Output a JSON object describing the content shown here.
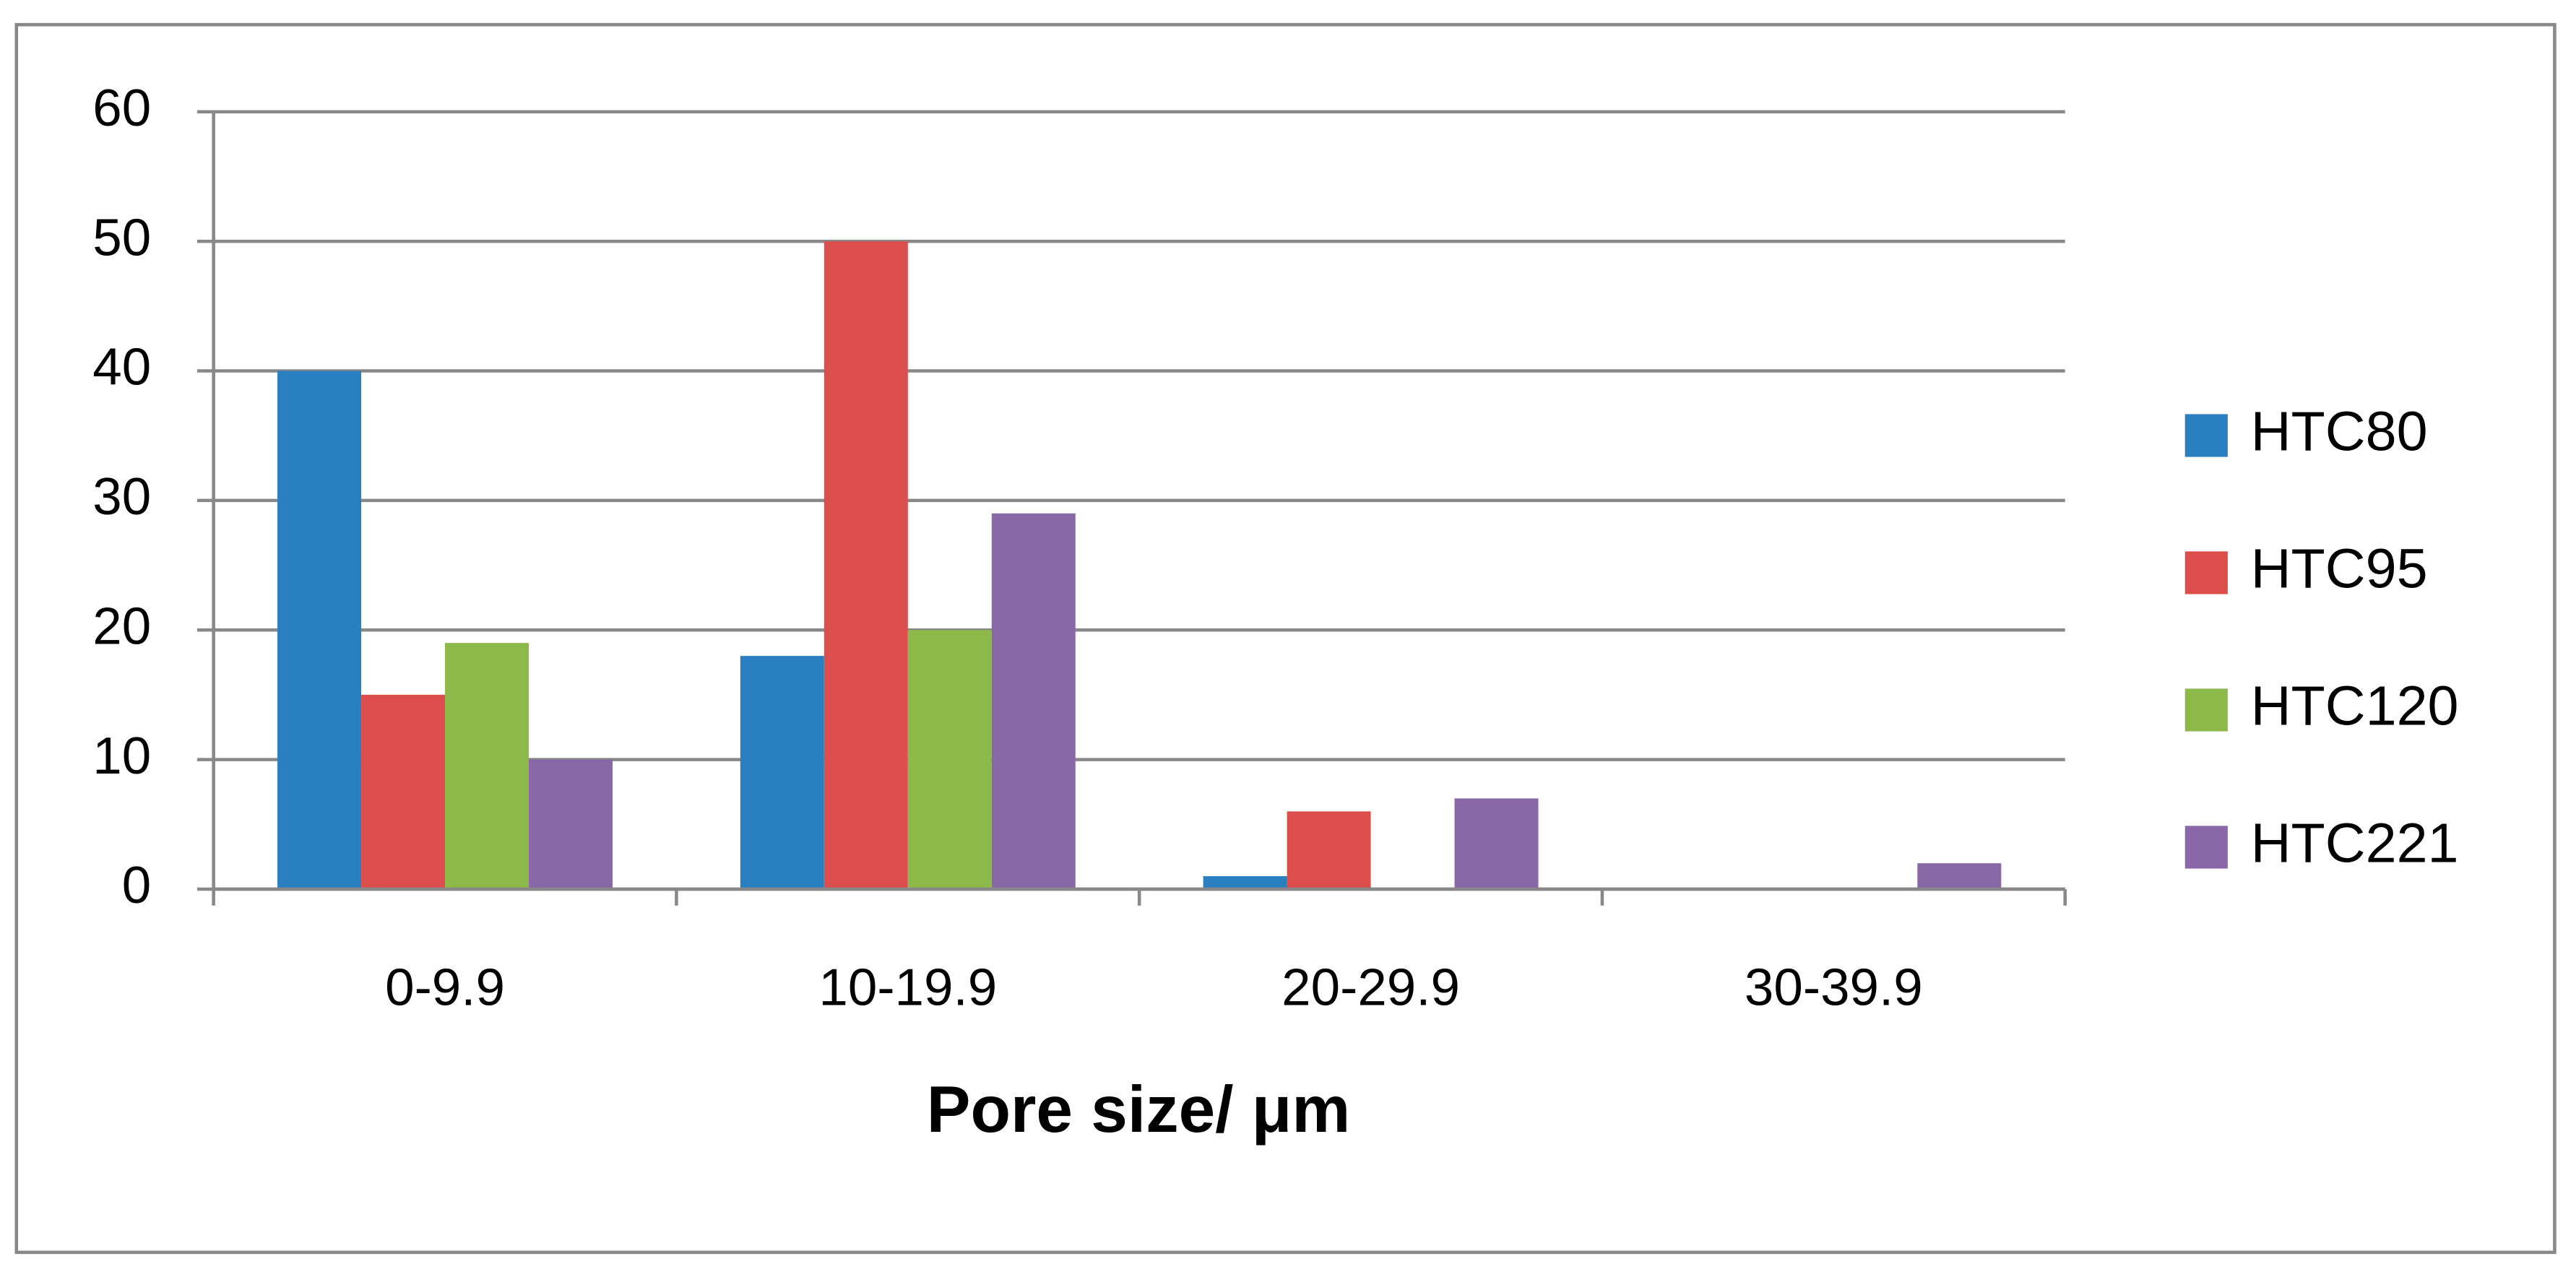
{
  "chart_data": {
    "type": "bar",
    "x_label": "Pore size/ μm",
    "categories": [
      "0-9.9",
      "10-19.9",
      "20-29.9",
      "30-39.9"
    ],
    "series": [
      {
        "name": "HTC80",
        "color": "#2a7fc1",
        "values": [
          40,
          18,
          1,
          0
        ]
      },
      {
        "name": "HTC95",
        "color": "#dc4e4b",
        "values": [
          15,
          50,
          6,
          0
        ]
      },
      {
        "name": "HTC120",
        "color": "#8db84a",
        "values": [
          19,
          20,
          0,
          0
        ]
      },
      {
        "name": "HTC221",
        "color": "#8a68a8",
        "values": [
          10,
          29,
          7,
          2
        ]
      }
    ],
    "ylim": [
      0,
      60
    ],
    "yticks": [
      0,
      10,
      20,
      30,
      40,
      50,
      60
    ],
    "grid": true,
    "legend": "right"
  }
}
